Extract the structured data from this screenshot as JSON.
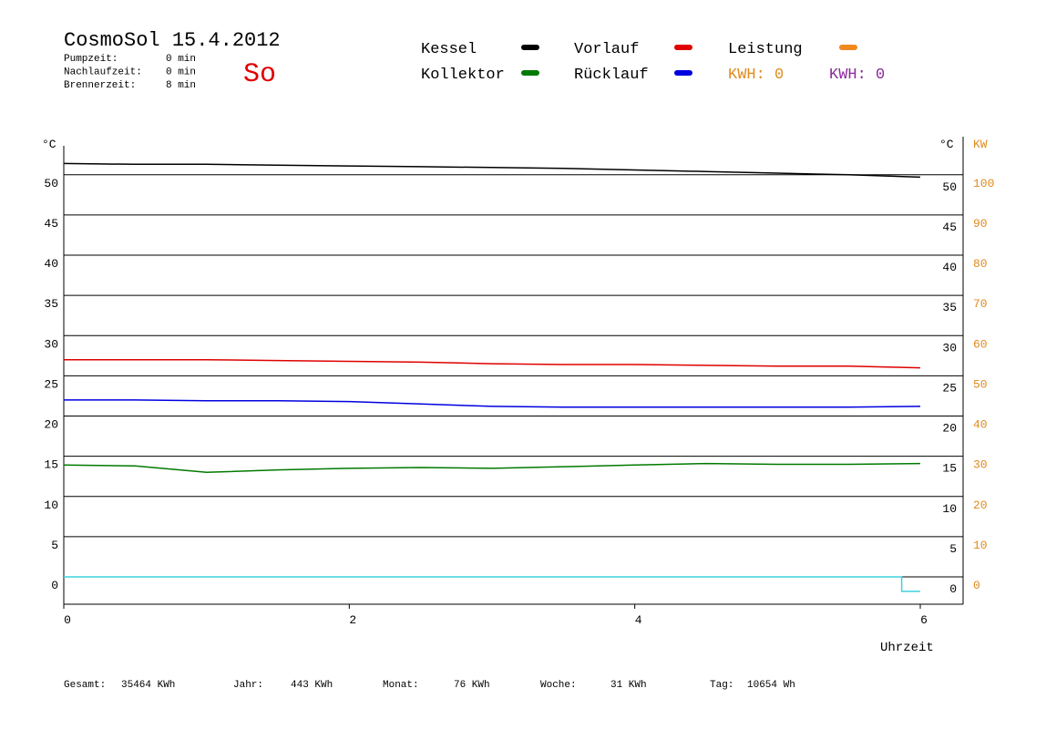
{
  "chart_data": {
    "type": "line",
    "title": "CosmoSol 15.4.2012",
    "day": "So",
    "info": [
      {
        "label": "Pumpzeit:",
        "value": "0 min"
      },
      {
        "label": "Nachlaufzeit:",
        "value": "0 min"
      },
      {
        "label": "Brennerzeit:",
        "value": "8 min"
      }
    ],
    "x_label": "Uhrzeit",
    "y_label": "°C",
    "y_label_right": "°C",
    "y2_label": "KW",
    "x": [
      0,
      0.5,
      1,
      1.5,
      2,
      2.5,
      3,
      3.5,
      4,
      4.5,
      5,
      5.5,
      6
    ],
    "xlim": [
      0,
      6.3
    ],
    "xticks": [
      0,
      2,
      4,
      6
    ],
    "ylim": [
      -3.4,
      53.6
    ],
    "yticks": [
      0,
      5,
      10,
      15,
      20,
      25,
      30,
      35,
      40,
      45,
      50
    ],
    "y2lim": [
      -6.8,
      107.2
    ],
    "y2ticks": [
      0,
      10,
      20,
      30,
      40,
      50,
      60,
      70,
      80,
      90,
      100
    ],
    "grid": true,
    "series": [
      {
        "name": "Kessel",
        "color": "#000000",
        "values": [
          51.4,
          51.3,
          51.3,
          51.2,
          51.1,
          51.0,
          50.9,
          50.8,
          50.6,
          50.4,
          50.2,
          50.0,
          49.7
        ]
      },
      {
        "name": "Kollektor",
        "color": "#007a00",
        "values": [
          13.9,
          13.8,
          13.0,
          13.3,
          13.5,
          13.6,
          13.5,
          13.7,
          13.9,
          14.1,
          14.0,
          14.0,
          14.1
        ]
      },
      {
        "name": "Vorlauf",
        "color": "#e00000",
        "values": [
          27.0,
          27.0,
          27.0,
          26.9,
          26.8,
          26.7,
          26.5,
          26.4,
          26.4,
          26.3,
          26.2,
          26.2,
          26.0
        ]
      },
      {
        "name": "Rücklauf",
        "color": "#0000e0",
        "values": [
          22.0,
          22.0,
          21.9,
          21.9,
          21.8,
          21.5,
          21.2,
          21.1,
          21.1,
          21.1,
          21.1,
          21.1,
          21.2
        ]
      },
      {
        "name": "Leistung",
        "color": "#f08a1e",
        "axis": "y2"
      },
      {
        "color": "#3fd0e0",
        "x": [
          0,
          5.87,
          5.87,
          6
        ],
        "values": [
          0,
          0,
          -1.8,
          -1.8
        ]
      }
    ],
    "kwh_labels": [
      {
        "text": "KWH: 0",
        "color": "#e08a1e"
      },
      {
        "text": "KWH: 0",
        "color": "#8a2a9a"
      }
    ],
    "totals": [
      {
        "label": "Gesamt:",
        "value": "35464 KWh"
      },
      {
        "label": "Jahr:",
        "value": "443 KWh"
      },
      {
        "label": "Monat:",
        "value": "76 KWh"
      },
      {
        "label": "Woche:",
        "value": "31 KWh"
      },
      {
        "label": "Tag:",
        "value": "10654 Wh"
      }
    ]
  }
}
